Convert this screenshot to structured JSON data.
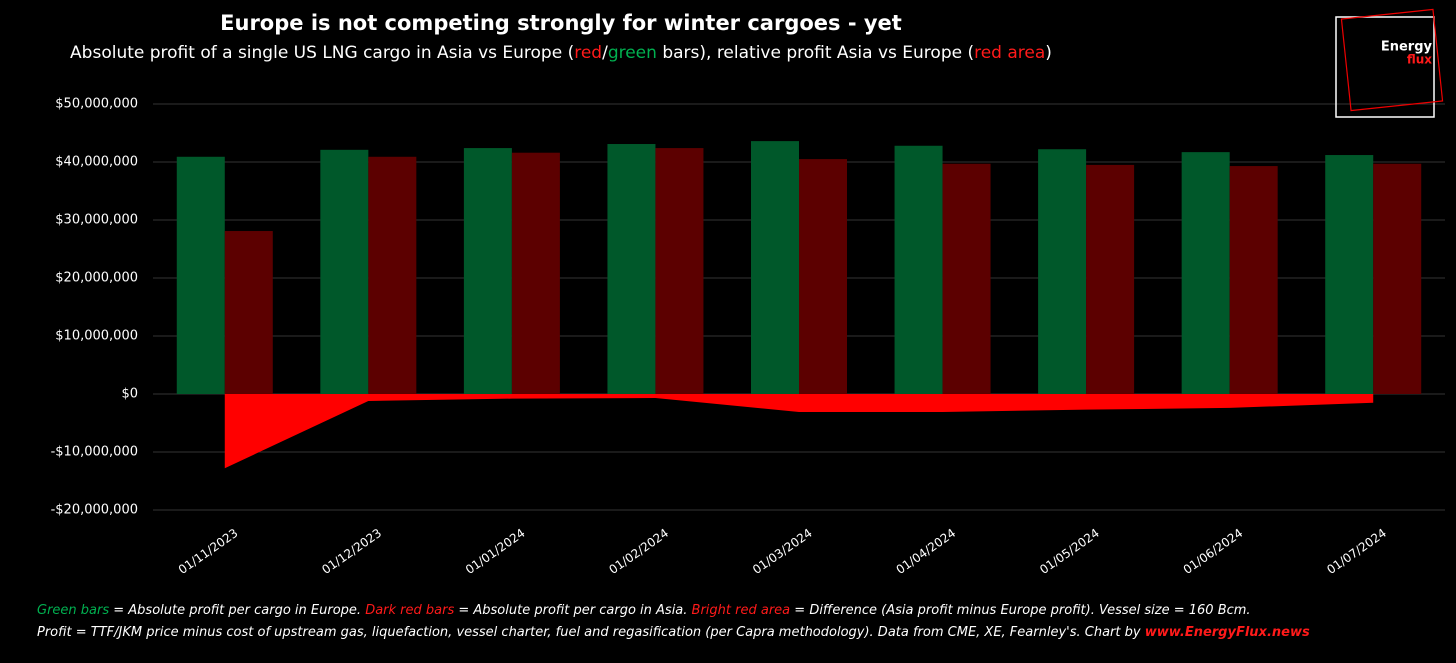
{
  "chart_data": {
    "type": "bar",
    "title": "Europe is not competing strongly for winter cargoes - yet",
    "subtitle": {
      "before": "Absolute profit of a single US LNG cargo in Asia vs Europe (",
      "red": "red",
      "slash": "/",
      "green": "green",
      "middle": " bars), relative profit Asia vs Europe (",
      "area": "red area",
      "after": ")"
    },
    "categories": [
      "01/11/2023",
      "01/12/2023",
      "01/01/2024",
      "01/02/2024",
      "01/03/2024",
      "01/04/2024",
      "01/05/2024",
      "01/06/2024",
      "01/07/2024"
    ],
    "series": [
      {
        "name": "Green bars",
        "color": "#00582a",
        "type": "bar",
        "values": [
          40900000,
          42100000,
          42400000,
          43100000,
          43600000,
          42800000,
          42200000,
          41700000,
          41200000
        ]
      },
      {
        "name": "Dark red bars",
        "color": "#5c0000",
        "type": "bar",
        "values": [
          28100000,
          40900000,
          41600000,
          42400000,
          40500000,
          39700000,
          39500000,
          39300000,
          39700000
        ]
      },
      {
        "name": "Bright red area",
        "color": "#ff0000",
        "type": "area",
        "values": [
          -12800000,
          -1200000,
          -800000,
          -700000,
          -3100000,
          -3100000,
          -2700000,
          -2400000,
          -1500000
        ]
      }
    ],
    "ylim": [
      -20000000,
      50000000
    ],
    "yticks": [
      {
        "value": -20000000,
        "label": "-$20,000,000"
      },
      {
        "value": -10000000,
        "label": "-$10,000,000"
      },
      {
        "value": 0,
        "label": "$0"
      },
      {
        "value": 10000000,
        "label": "$10,000,000"
      },
      {
        "value": 20000000,
        "label": "$20,000,000"
      },
      {
        "value": 30000000,
        "label": "$30,000,000"
      },
      {
        "value": 40000000,
        "label": "$40,000,000"
      },
      {
        "value": 50000000,
        "label": "$50,000,000"
      }
    ],
    "grid": true,
    "footnote": {
      "line1_a": " = Absolute profit per cargo in Europe. ",
      "line1_b": " = Absolute profit per cargo in Asia. ",
      "line1_c": " = Difference (Asia profit minus Europe profit). Vessel size = 160 Bcm.",
      "line2": "Profit = TTF/JKM price minus cost of upstream gas, liquefaction, vessel charter, fuel and regasification (per Capra methodology). Data from CME, XE, Fearnley's. Chart by ",
      "link": "www.EnergyFlux.news"
    },
    "logo": {
      "line1": "Energy",
      "line2": "flux"
    }
  }
}
